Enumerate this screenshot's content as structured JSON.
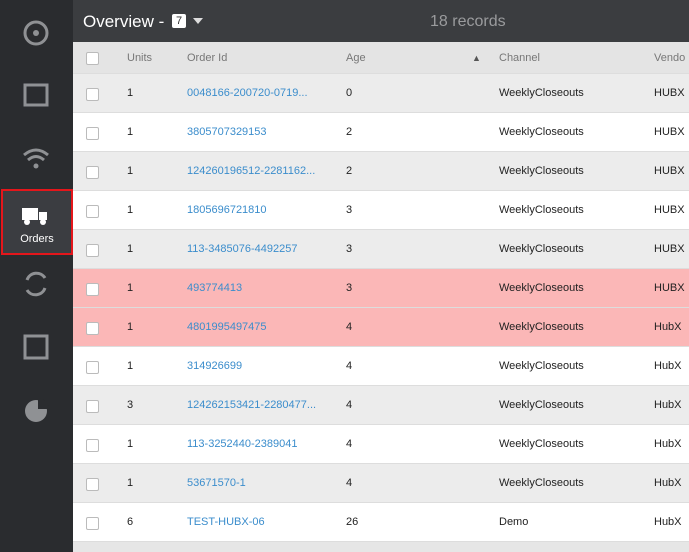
{
  "nav": {
    "active_label": "Orders"
  },
  "header": {
    "title": "Overview -",
    "badge": "7",
    "records": "18 records"
  },
  "table": {
    "columns": [
      "Units",
      "Order Id",
      "Age",
      "Channel",
      "Vendo"
    ],
    "rows": [
      [
        "1",
        "0048166-200720-0719...",
        "0",
        "WeeklyCloseouts",
        "HUBX"
      ],
      [
        "1",
        "3805707329153",
        "2",
        "WeeklyCloseouts",
        "HUBX"
      ],
      [
        "1",
        "124260196512-2281162...",
        "2",
        "WeeklyCloseouts",
        "HUBX"
      ],
      [
        "1",
        "1805696721810",
        "3",
        "WeeklyCloseouts",
        "HUBX"
      ],
      [
        "1",
        "113-3485076-4492257",
        "3",
        "WeeklyCloseouts",
        "HUBX"
      ],
      [
        "1",
        "493774413",
        "3",
        "WeeklyCloseouts",
        "HUBX"
      ],
      [
        "1",
        "4801995497475",
        "4",
        "WeeklyCloseouts",
        "HubX"
      ],
      [
        "1",
        "314926699",
        "4",
        "WeeklyCloseouts",
        "HubX"
      ],
      [
        "3",
        "124262153421-2280477...",
        "4",
        "WeeklyCloseouts",
        "HubX"
      ],
      [
        "1",
        "113-3252440-2389041",
        "4",
        "WeeklyCloseouts",
        "HubX"
      ],
      [
        "1",
        "53671570-1",
        "4",
        "WeeklyCloseouts",
        "HubX"
      ],
      [
        "6",
        "TEST-HUBX-06",
        "26",
        "Demo",
        "HubX"
      ]
    ]
  }
}
